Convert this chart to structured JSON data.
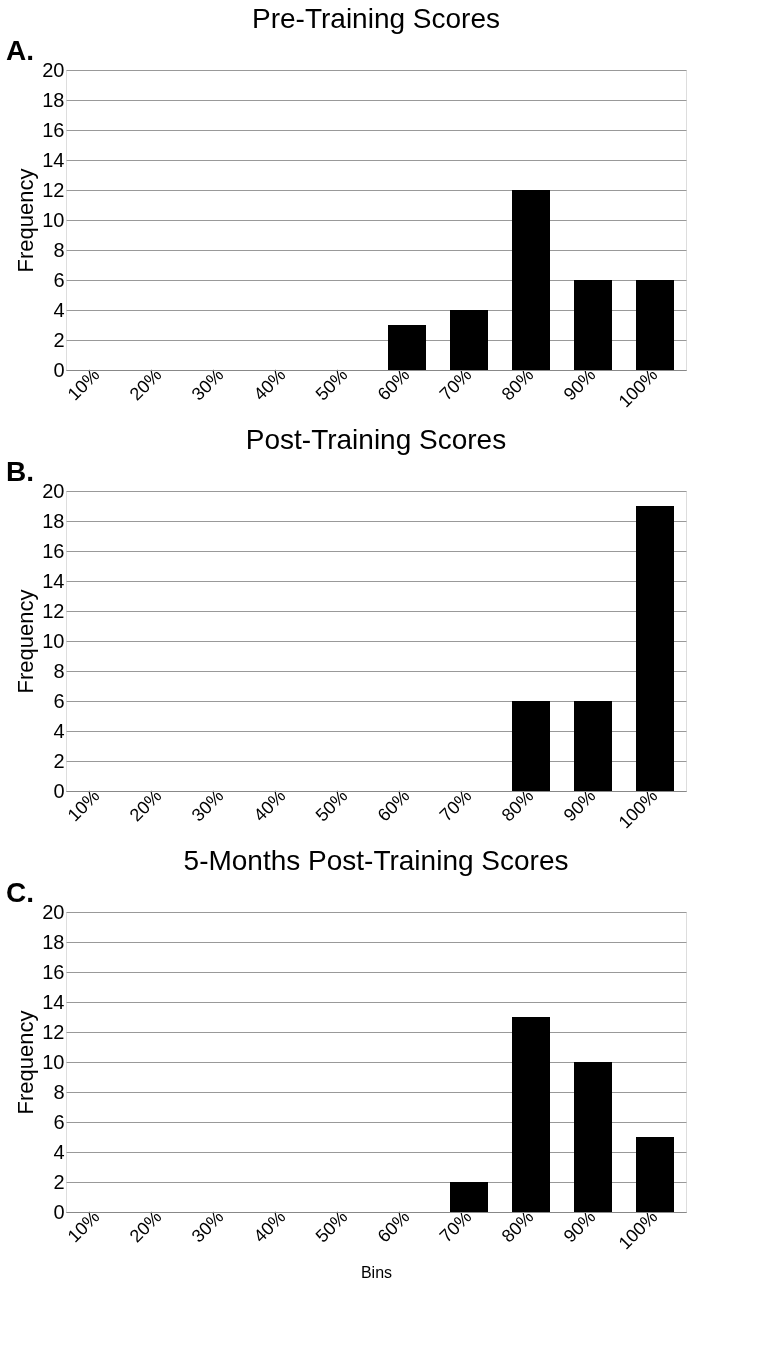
{
  "chart_data": [
    {
      "type": "bar",
      "title": "Pre-Training Scores",
      "ylabel": "Frequency",
      "annotations": [
        "A."
      ],
      "categories": [
        "10%",
        "20%",
        "30%",
        "40%",
        "50%",
        "60%",
        "70%",
        "80%",
        "90%",
        "100%"
      ],
      "values": [
        0,
        0,
        0,
        0,
        0,
        3,
        4,
        12,
        6,
        6
      ],
      "color": "#000000",
      "ylim": [
        0,
        20
      ],
      "yticks": [
        0,
        2,
        4,
        6,
        8,
        10,
        12,
        14,
        16,
        18,
        20
      ],
      "grid": "y"
    },
    {
      "type": "bar",
      "title": "Post-Training Scores",
      "ylabel": "Frequency",
      "annotations": [
        "B."
      ],
      "categories": [
        "10%",
        "20%",
        "30%",
        "40%",
        "50%",
        "60%",
        "70%",
        "80%",
        "90%",
        "100%"
      ],
      "values": [
        0,
        0,
        0,
        0,
        0,
        0,
        0,
        6,
        6,
        19
      ],
      "color": "#000000",
      "ylim": [
        0,
        20
      ],
      "yticks": [
        0,
        2,
        4,
        6,
        8,
        10,
        12,
        14,
        16,
        18,
        20
      ],
      "grid": "y"
    },
    {
      "type": "bar",
      "title": "5-Months Post-Training Scores",
      "xlabel": "Bins",
      "ylabel": "Frequency",
      "annotations": [
        "C."
      ],
      "categories": [
        "10%",
        "20%",
        "30%",
        "40%",
        "50%",
        "60%",
        "70%",
        "80%",
        "90%",
        "100%"
      ],
      "values": [
        0,
        0,
        0,
        0,
        0,
        0,
        2,
        13,
        10,
        5
      ],
      "color": "#000000",
      "ylim": [
        0,
        20
      ],
      "yticks": [
        0,
        2,
        4,
        6,
        8,
        10,
        12,
        14,
        16,
        18,
        20
      ],
      "grid": "y"
    }
  ]
}
